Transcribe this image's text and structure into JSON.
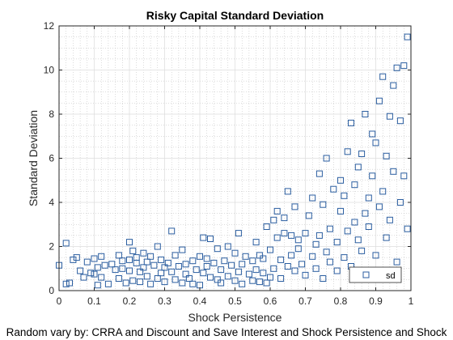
{
  "chart_data": {
    "type": "scatter",
    "title": "Risky Capital Standard Deviation",
    "xlabel": "Shock Persistence",
    "ylabel": "Standard Deviation",
    "caption": "Random vary by: CRRA and Discount and Save Interest and Shock Persistence and Shock",
    "xlim": [
      0,
      1
    ],
    "ylim": [
      0,
      12
    ],
    "xticks": [
      "0",
      "0.1",
      "0.2",
      "0.3",
      "0.4",
      "0.5",
      "0.6",
      "0.7",
      "0.8",
      "0.9",
      "1"
    ],
    "yticks": [
      "0",
      "2",
      "4",
      "6",
      "8",
      "10",
      "12"
    ],
    "grid": true,
    "minor_grid": true,
    "legend": {
      "position": "bottom-right",
      "entries": [
        "sd"
      ]
    },
    "marker": {
      "shape": "square",
      "color": "#2b5ea0",
      "filled": false
    },
    "series": [
      {
        "name": "sd",
        "points": [
          [
            0.0,
            1.15
          ],
          [
            0.02,
            2.15
          ],
          [
            0.02,
            0.3
          ],
          [
            0.03,
            0.35
          ],
          [
            0.04,
            1.4
          ],
          [
            0.05,
            1.5
          ],
          [
            0.06,
            0.9
          ],
          [
            0.07,
            0.6
          ],
          [
            0.08,
            1.3
          ],
          [
            0.09,
            0.8
          ],
          [
            0.1,
            1.45
          ],
          [
            0.1,
            0.75
          ],
          [
            0.11,
            0.25
          ],
          [
            0.11,
            1.05
          ],
          [
            0.12,
            1.55
          ],
          [
            0.12,
            0.6
          ],
          [
            0.13,
            1.15
          ],
          [
            0.14,
            0.3
          ],
          [
            0.15,
            1.2
          ],
          [
            0.16,
            0.95
          ],
          [
            0.17,
            1.6
          ],
          [
            0.17,
            0.55
          ],
          [
            0.18,
            1.35
          ],
          [
            0.18,
            1.0
          ],
          [
            0.19,
            0.35
          ],
          [
            0.2,
            1.4
          ],
          [
            0.2,
            2.2
          ],
          [
            0.2,
            0.9
          ],
          [
            0.21,
            1.8
          ],
          [
            0.21,
            0.45
          ],
          [
            0.22,
            1.25
          ],
          [
            0.22,
            1.5
          ],
          [
            0.23,
            0.85
          ],
          [
            0.23,
            0.4
          ],
          [
            0.24,
            1.7
          ],
          [
            0.24,
            1.05
          ],
          [
            0.25,
            0.65
          ],
          [
            0.25,
            1.3
          ],
          [
            0.26,
            0.3
          ],
          [
            0.26,
            1.55
          ],
          [
            0.27,
            1.15
          ],
          [
            0.28,
            2.0
          ],
          [
            0.28,
            0.55
          ],
          [
            0.29,
            1.4
          ],
          [
            0.29,
            0.8
          ],
          [
            0.3,
            1.05
          ],
          [
            0.3,
            0.4
          ],
          [
            0.31,
            1.25
          ],
          [
            0.32,
            2.7
          ],
          [
            0.32,
            0.85
          ],
          [
            0.33,
            0.5
          ],
          [
            0.33,
            1.6
          ],
          [
            0.34,
            1.1
          ],
          [
            0.35,
            0.35
          ],
          [
            0.35,
            1.85
          ],
          [
            0.36,
            0.75
          ],
          [
            0.36,
            1.2
          ],
          [
            0.37,
            0.55
          ],
          [
            0.38,
            1.35
          ],
          [
            0.38,
            0.3
          ],
          [
            0.39,
            0.95
          ],
          [
            0.4,
            1.55
          ],
          [
            0.4,
            0.25
          ],
          [
            0.41,
            2.4
          ],
          [
            0.41,
            0.8
          ],
          [
            0.42,
            1.1
          ],
          [
            0.42,
            1.45
          ],
          [
            0.43,
            0.6
          ],
          [
            0.43,
            2.35
          ],
          [
            0.44,
            1.25
          ],
          [
            0.45,
            0.5
          ],
          [
            0.45,
            1.9
          ],
          [
            0.46,
            0.95
          ],
          [
            0.46,
            0.35
          ],
          [
            0.47,
            1.35
          ],
          [
            0.48,
            2.0
          ],
          [
            0.48,
            0.65
          ],
          [
            0.49,
            1.15
          ],
          [
            0.5,
            0.45
          ],
          [
            0.5,
            1.7
          ],
          [
            0.51,
            2.6
          ],
          [
            0.51,
            0.85
          ],
          [
            0.52,
            1.2
          ],
          [
            0.52,
            0.3
          ],
          [
            0.53,
            1.55
          ],
          [
            0.54,
            0.75
          ],
          [
            0.55,
            1.35
          ],
          [
            0.55,
            0.45
          ],
          [
            0.56,
            2.2
          ],
          [
            0.56,
            0.95
          ],
          [
            0.57,
            1.6
          ],
          [
            0.57,
            0.4
          ],
          [
            0.58,
            0.8
          ],
          [
            0.58,
            1.45
          ],
          [
            0.59,
            2.9
          ],
          [
            0.59,
            0.35
          ],
          [
            0.6,
            1.85
          ],
          [
            0.6,
            0.6
          ],
          [
            0.61,
            3.2
          ],
          [
            0.61,
            1.0
          ],
          [
            0.62,
            2.4
          ],
          [
            0.62,
            3.6
          ],
          [
            0.63,
            1.4
          ],
          [
            0.63,
            0.55
          ],
          [
            0.64,
            2.6
          ],
          [
            0.64,
            3.3
          ],
          [
            0.65,
            1.1
          ],
          [
            0.65,
            4.5
          ],
          [
            0.66,
            1.6
          ],
          [
            0.66,
            2.5
          ],
          [
            0.67,
            0.9
          ],
          [
            0.67,
            3.8
          ],
          [
            0.68,
            1.9
          ],
          [
            0.68,
            2.3
          ],
          [
            0.69,
            1.2
          ],
          [
            0.7,
            2.6
          ],
          [
            0.7,
            0.7
          ],
          [
            0.71,
            3.4
          ],
          [
            0.72,
            1.55
          ],
          [
            0.72,
            4.2
          ],
          [
            0.73,
            2.1
          ],
          [
            0.73,
            1.0
          ],
          [
            0.74,
            5.3
          ],
          [
            0.74,
            2.5
          ],
          [
            0.75,
            0.55
          ],
          [
            0.75,
            3.9
          ],
          [
            0.76,
            1.75
          ],
          [
            0.76,
            6.0
          ],
          [
            0.77,
            2.8
          ],
          [
            0.77,
            1.3
          ],
          [
            0.78,
            4.6
          ],
          [
            0.79,
            2.2
          ],
          [
            0.79,
            0.9
          ],
          [
            0.8,
            3.6
          ],
          [
            0.8,
            5.0
          ],
          [
            0.81,
            1.5
          ],
          [
            0.81,
            4.3
          ],
          [
            0.82,
            2.7
          ],
          [
            0.82,
            6.3
          ],
          [
            0.83,
            1.1
          ],
          [
            0.83,
            7.6
          ],
          [
            0.84,
            3.1
          ],
          [
            0.84,
            4.8
          ],
          [
            0.85,
            2.3
          ],
          [
            0.85,
            5.6
          ],
          [
            0.86,
            6.2
          ],
          [
            0.86,
            1.8
          ],
          [
            0.87,
            3.5
          ],
          [
            0.87,
            8.0
          ],
          [
            0.88,
            4.2
          ],
          [
            0.88,
            2.9
          ],
          [
            0.89,
            7.1
          ],
          [
            0.89,
            5.2
          ],
          [
            0.9,
            1.6
          ],
          [
            0.9,
            6.7
          ],
          [
            0.91,
            3.8
          ],
          [
            0.91,
            8.6
          ],
          [
            0.92,
            4.5
          ],
          [
            0.92,
            9.7
          ],
          [
            0.93,
            2.4
          ],
          [
            0.93,
            6.1
          ],
          [
            0.94,
            7.9
          ],
          [
            0.94,
            3.2
          ],
          [
            0.95,
            9.3
          ],
          [
            0.95,
            5.4
          ],
          [
            0.96,
            10.1
          ],
          [
            0.96,
            1.3
          ],
          [
            0.97,
            7.7
          ],
          [
            0.97,
            4.0
          ],
          [
            0.98,
            10.2
          ],
          [
            0.98,
            5.2
          ],
          [
            0.99,
            11.5
          ],
          [
            0.99,
            2.8
          ]
        ]
      }
    ]
  }
}
